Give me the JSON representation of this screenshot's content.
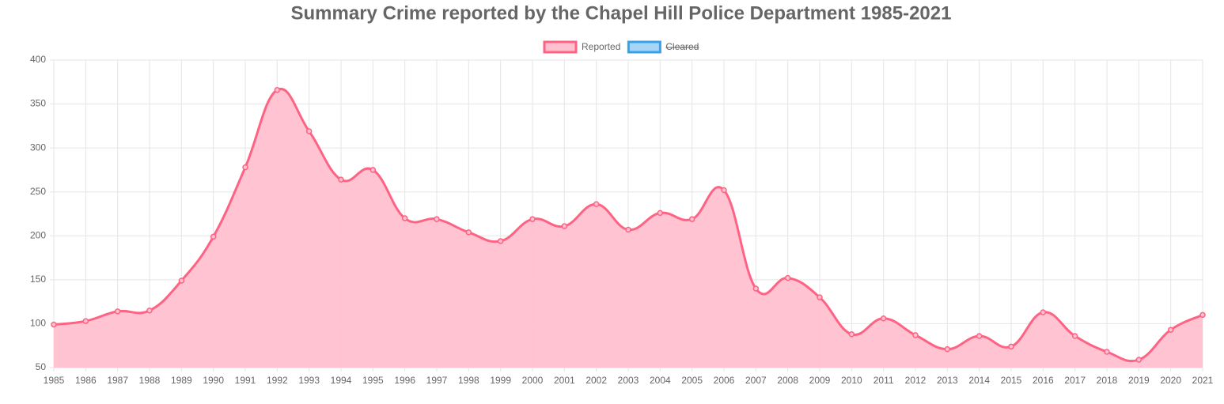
{
  "chart_data": {
    "type": "line",
    "title": "Summary Crime reported by the Chapel Hill Police Department 1985-2021",
    "categories": [
      "1985",
      "1986",
      "1987",
      "1988",
      "1989",
      "1990",
      "1991",
      "1992",
      "1993",
      "1994",
      "1995",
      "1996",
      "1997",
      "1998",
      "1999",
      "2000",
      "2001",
      "2002",
      "2003",
      "2004",
      "2005",
      "2006",
      "2007",
      "2008",
      "2009",
      "2010",
      "2011",
      "2012",
      "2013",
      "2014",
      "2015",
      "2016",
      "2017",
      "2018",
      "2019",
      "2020",
      "2021"
    ],
    "series": [
      {
        "name": "Reported",
        "color": "#ff6384",
        "fill": "#ffc0cf",
        "values": [
          99,
          103,
          114,
          115,
          149,
          199,
          278,
          366,
          319,
          264,
          275,
          220,
          219,
          204,
          194,
          219,
          211,
          236,
          207,
          226,
          219,
          252,
          140,
          152,
          130,
          88,
          106,
          87,
          71,
          86,
          74,
          113,
          86,
          68,
          59,
          93,
          110
        ]
      }
    ],
    "hidden_series": [
      {
        "name": "Cleared",
        "color": "#36a2eb",
        "fill": "#a8d4f5"
      }
    ],
    "ylim": [
      50,
      400
    ],
    "yticks": [
      50,
      100,
      150,
      200,
      250,
      300,
      350,
      400
    ],
    "grid": true,
    "legend": "top"
  }
}
